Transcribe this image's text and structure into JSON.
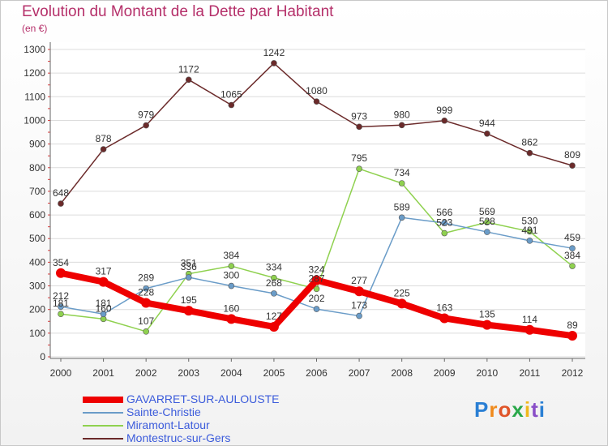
{
  "chart_data": {
    "type": "line",
    "title": "Evolution du Montant de la Dette par Habitant",
    "subtitle": "(en €)",
    "x": [
      "2000",
      "2001",
      "2002",
      "2003",
      "2004",
      "2005",
      "2006",
      "2007",
      "2008",
      "2009",
      "2010",
      "2011",
      "2012"
    ],
    "ylim": [
      0,
      1300
    ],
    "yticks": [
      0,
      100,
      200,
      300,
      400,
      500,
      600,
      700,
      800,
      900,
      1000,
      1100,
      1200,
      1300
    ],
    "grid": "horizontal",
    "legend_position": "bottom-left",
    "series": [
      {
        "name": "GAVARRET-SUR-AULOUSTE",
        "color": "#ee0000",
        "values": [
          354,
          317,
          228,
          195,
          160,
          127,
          324,
          277,
          225,
          163,
          135,
          114,
          89
        ]
      },
      {
        "name": "Sainte-Christie",
        "color": "#6a9cc8",
        "values": [
          212,
          181,
          289,
          336,
          300,
          268,
          202,
          173,
          589,
          566,
          528,
          491,
          459
        ]
      },
      {
        "name": "Miramont-Latour",
        "color": "#8fd14f",
        "values": [
          181,
          160,
          107,
          351,
          384,
          334,
          287,
          795,
          734,
          523,
          569,
          530,
          384
        ]
      },
      {
        "name": "Montestruc-sur-Gers",
        "color": "#6b2a2a",
        "values": [
          648,
          878,
          979,
          1172,
          1065,
          1242,
          1080,
          973,
          980,
          999,
          944,
          862,
          809
        ]
      }
    ]
  },
  "logo_text": "Proxiti"
}
